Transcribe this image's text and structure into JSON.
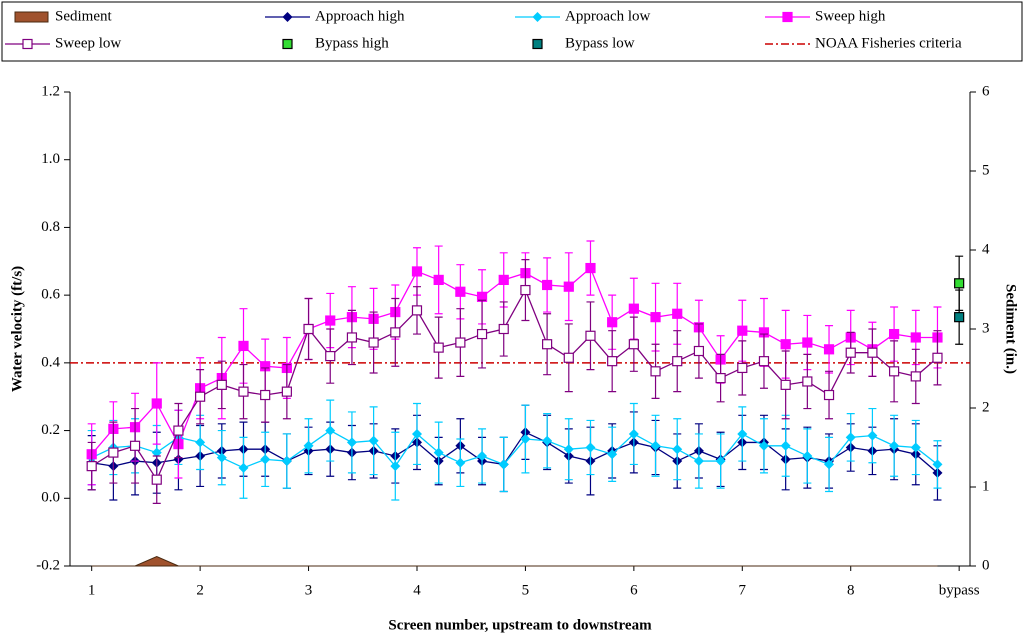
{
  "chart_data": {
    "type": "line",
    "x_label": "Screen number, upstream to downstream",
    "y_label": "Water velocity (ft/s)",
    "y2_label": "Sediment (in.)",
    "legend": "top",
    "xlim": [
      0.8,
      9.1
    ],
    "xticks": [
      1,
      2,
      3,
      4,
      5,
      6,
      7,
      8,
      {
        "value": 9,
        "label": "bypass"
      }
    ],
    "ylim": [
      -0.2,
      1.2
    ],
    "yticks": [
      -0.2,
      {
        "value": 0,
        "label": "0.0"
      },
      0.2,
      0.4,
      0.6,
      0.8,
      {
        "value": 1,
        "label": "1.0"
      },
      1.2
    ],
    "y2lim": [
      0,
      6
    ],
    "y2ticks": [
      0,
      1,
      2,
      3,
      4,
      5,
      6
    ],
    "x": [
      1,
      1.2,
      1.4,
      1.6,
      1.8,
      2,
      2.2,
      2.4,
      2.6,
      2.8,
      3,
      3.2,
      3.4,
      3.6,
      3.8,
      4,
      4.2,
      4.4,
      4.6,
      4.8,
      5,
      5.2,
      5.4,
      5.6,
      5.8,
      6,
      6.2,
      6.4,
      6.6,
      6.8,
      7,
      7.2,
      7.4,
      7.6,
      7.8,
      8,
      8.2,
      8.4,
      8.6,
      8.8
    ],
    "series": [
      {
        "name": "Sediment",
        "type": "area",
        "axis": "y2",
        "color": "#a0522d",
        "values": [
          0,
          0,
          0,
          0.12,
          0,
          0,
          0,
          0,
          0,
          0,
          0,
          0,
          0,
          0,
          0,
          0,
          0,
          0,
          0,
          0,
          0,
          0,
          0,
          0,
          0,
          0,
          0,
          0,
          0,
          0,
          0,
          0,
          0,
          0,
          0,
          0,
          0,
          0,
          0,
          0
        ]
      },
      {
        "name": "Approach high",
        "type": "line",
        "marker": "diamond",
        "color": "#000080",
        "values": [
          0.105,
          0.095,
          0.11,
          0.105,
          0.115,
          0.125,
          0.14,
          0.145,
          0.145,
          0.11,
          0.14,
          0.145,
          0.135,
          0.14,
          0.125,
          0.165,
          0.11,
          0.155,
          0.11,
          0.1,
          0.195,
          0.165,
          0.125,
          0.11,
          0.14,
          0.165,
          0.15,
          0.11,
          0.14,
          0.115,
          0.165,
          0.165,
          0.115,
          0.12,
          0.11,
          0.15,
          0.14,
          0.145,
          0.13,
          0.075
        ],
        "errors": [
          0.08,
          0.1,
          0.1,
          0.09,
          0.09,
          0.09,
          0.08,
          0.08,
          0.08,
          0.08,
          0.07,
          0.08,
          0.08,
          0.08,
          0.08,
          0.08,
          0.07,
          0.08,
          0.07,
          0.08,
          0.08,
          0.08,
          0.08,
          0.1,
          0.08,
          0.09,
          0.08,
          0.08,
          0.08,
          0.08,
          0.08,
          0.08,
          0.09,
          0.09,
          0.08,
          0.07,
          0.07,
          0.09,
          0.09,
          0.08
        ]
      },
      {
        "name": "Approach low",
        "type": "line",
        "marker": "diamond",
        "color": "#00ccff",
        "values": [
          0.12,
          0.15,
          0.155,
          0.135,
          0.18,
          0.165,
          0.12,
          0.09,
          0.115,
          0.11,
          0.155,
          0.2,
          0.165,
          0.17,
          0.095,
          0.19,
          0.135,
          0.105,
          0.125,
          0.1,
          0.175,
          0.17,
          0.145,
          0.15,
          0.13,
          0.19,
          0.155,
          0.145,
          0.11,
          0.11,
          0.19,
          0.155,
          0.155,
          0.125,
          0.1,
          0.18,
          0.185,
          0.155,
          0.15,
          0.1
        ],
        "errors": [
          0.08,
          0.08,
          0.08,
          0.08,
          0.08,
          0.08,
          0.08,
          0.09,
          0.08,
          0.08,
          0.08,
          0.09,
          0.09,
          0.1,
          0.1,
          0.09,
          0.09,
          0.07,
          0.08,
          0.08,
          0.1,
          0.08,
          0.09,
          0.08,
          0.08,
          0.09,
          0.09,
          0.09,
          0.08,
          0.08,
          0.08,
          0.08,
          0.09,
          0.08,
          0.08,
          0.07,
          0.08,
          0.09,
          0.08,
          0.07
        ]
      },
      {
        "name": "Sweep high",
        "type": "line",
        "marker": "square",
        "color": "#ff00ff",
        "values": [
          0.13,
          0.205,
          0.21,
          0.28,
          0.16,
          0.325,
          0.355,
          0.45,
          0.39,
          0.385,
          0.5,
          0.525,
          0.535,
          0.53,
          0.55,
          0.67,
          0.645,
          0.61,
          0.595,
          0.645,
          0.665,
          0.63,
          0.625,
          0.68,
          0.52,
          0.56,
          0.535,
          0.545,
          0.505,
          0.41,
          0.495,
          0.49,
          0.455,
          0.46,
          0.44,
          0.475,
          0.44,
          0.485,
          0.475,
          0.475
        ],
        "errors": [
          0.09,
          0.08,
          0.1,
          0.12,
          0.1,
          0.09,
          0.12,
          0.11,
          0.08,
          0.09,
          0.09,
          0.08,
          0.09,
          0.09,
          0.08,
          0.07,
          0.1,
          0.08,
          0.08,
          0.08,
          0.06,
          0.08,
          0.1,
          0.08,
          0.08,
          0.09,
          0.1,
          0.09,
          0.08,
          0.07,
          0.09,
          0.1,
          0.1,
          0.08,
          0.07,
          0.08,
          0.08,
          0.08,
          0.08,
          0.09
        ]
      },
      {
        "name": "Sweep low",
        "type": "line",
        "marker": "open-square",
        "color": "#800080",
        "values": [
          0.095,
          0.135,
          0.155,
          0.055,
          0.2,
          0.3,
          0.335,
          0.315,
          0.305,
          0.315,
          0.5,
          0.42,
          0.475,
          0.46,
          0.49,
          0.555,
          0.445,
          0.46,
          0.485,
          0.5,
          0.615,
          0.455,
          0.415,
          0.48,
          0.405,
          0.455,
          0.375,
          0.405,
          0.435,
          0.355,
          0.385,
          0.405,
          0.335,
          0.345,
          0.305,
          0.43,
          0.43,
          0.375,
          0.36,
          0.415
        ],
        "errors": [
          0.07,
          0.09,
          0.11,
          0.07,
          0.08,
          0.08,
          0.07,
          0.08,
          0.08,
          0.08,
          0.09,
          0.08,
          0.08,
          0.09,
          0.1,
          0.07,
          0.09,
          0.1,
          0.1,
          0.08,
          0.09,
          0.09,
          0.1,
          0.1,
          0.09,
          0.08,
          0.08,
          0.09,
          0.08,
          0.07,
          0.08,
          0.08,
          0.1,
          0.08,
          0.07,
          0.06,
          0.07,
          0.09,
          0.08,
          0.08
        ]
      },
      {
        "name": "Bypass high",
        "type": "points",
        "marker": "square",
        "color": "#33dd33",
        "x": [
          9
        ],
        "values": [
          0.635
        ],
        "errors": [
          0.08
        ]
      },
      {
        "name": "Bypass low",
        "type": "points",
        "marker": "square",
        "color": "#008080",
        "x": [
          9
        ],
        "values": [
          0.535
        ],
        "errors": [
          0.08
        ]
      }
    ],
    "reference_lines": [
      {
        "name": "NOAA Fisheries criteria",
        "value": 0.4,
        "color": "#cc0000"
      }
    ]
  }
}
